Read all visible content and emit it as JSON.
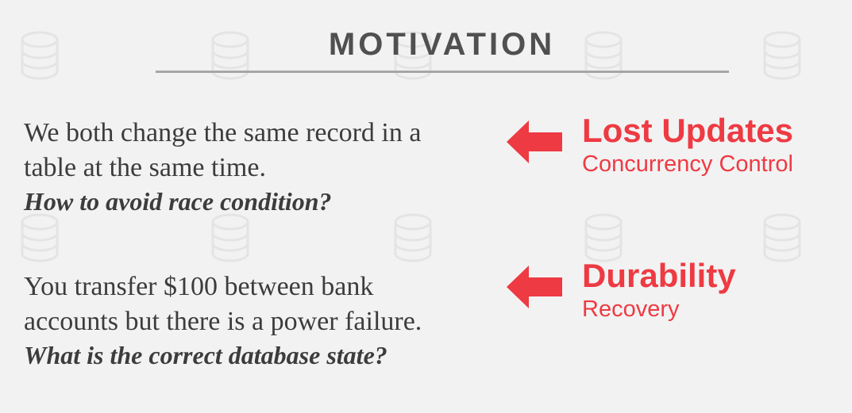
{
  "slide": {
    "title": "MOTIVATION"
  },
  "items": [
    {
      "lines": [
        "We both change the same record in a",
        "table at the same time."
      ],
      "question": "How to avoid race condition?",
      "tag_title": "Lost Updates",
      "tag_subtitle": "Concurrency Control"
    },
    {
      "lines": [
        "You transfer $100 between bank",
        "accounts but there is a power failure."
      ],
      "question": "What is the correct database state?",
      "tag_title": "Durability",
      "tag_subtitle": "Recovery"
    }
  ],
  "colors": {
    "accent": "#ee3a43",
    "title_text": "#505050",
    "body_text": "#3c3c3c",
    "rule": "#a6a6a6",
    "background": "#f2f2f2"
  },
  "icons": {
    "background_pattern": "database-icon",
    "pointer": "left-arrow-icon"
  }
}
